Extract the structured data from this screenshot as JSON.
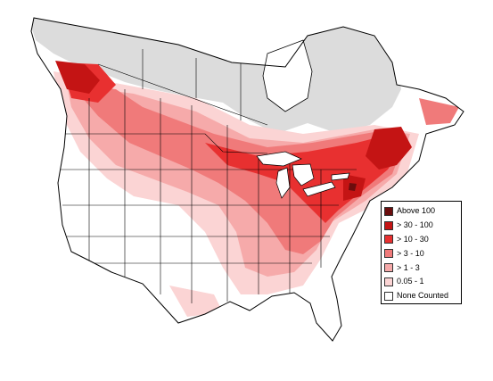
{
  "legend": {
    "items": [
      {
        "label": "Above 100",
        "color": "#6b0d0d"
      },
      {
        "label": "> 30 - 100",
        "color": "#c41414"
      },
      {
        "label": "> 10 - 30",
        "color": "#e83030"
      },
      {
        "label": "> 3 - 10",
        "color": "#f07a7a"
      },
      {
        "label": "> 1 - 3",
        "color": "#f6aaaa"
      },
      {
        "label": "0.05 - 1",
        "color": "#fbd4d4"
      },
      {
        "label": "None Counted",
        "color": "#ffffff"
      }
    ]
  },
  "colors": {
    "uncounted_region": "#dcdcdc",
    "boundaries": "#000000",
    "water": "#ffffff"
  }
}
